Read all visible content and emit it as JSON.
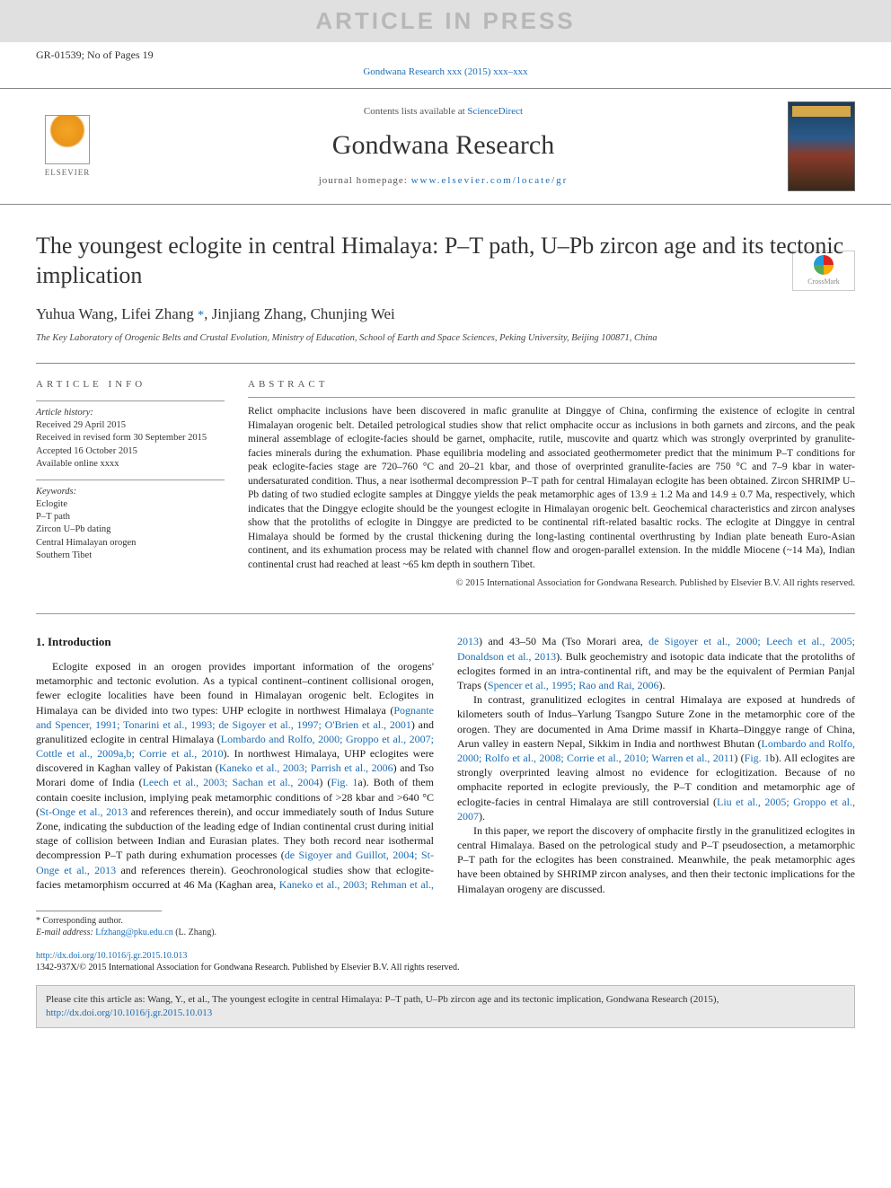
{
  "banner": "ARTICLE IN PRESS",
  "gr_id": "GR-01539; No of Pages 19",
  "journal_ref": "Gondwana Research xxx (2015) xxx–xxx",
  "contents_line_pre": "Contents lists available at ",
  "contents_line_link": "ScienceDirect",
  "journal_title": "Gondwana Research",
  "homepage_pre": "journal homepage: ",
  "homepage_url": "www.elsevier.com/locate/gr",
  "elsevier": "ELSEVIER",
  "crossmark": "CrossMark",
  "title": "The youngest eclogite in central Himalaya: P–T path, U–Pb zircon age and its tectonic implication",
  "authors_line": "Yuhua Wang, Lifei Zhang *, Jinjiang Zhang, Chunjing Wei",
  "affiliation": "The Key Laboratory of Orogenic Belts and Crustal Evolution, Ministry of Education, School of Earth and Space Sciences, Peking University, Beijing 100871, China",
  "info_head": "ARTICLE INFO",
  "abs_head": "ABSTRACT",
  "history_label": "Article history:",
  "history": [
    "Received 29 April 2015",
    "Received in revised form 30 September 2015",
    "Accepted 16 October 2015",
    "Available online xxxx"
  ],
  "keywords_label": "Keywords:",
  "keywords": [
    "Eclogite",
    "P–T path",
    "Zircon U–Pb dating",
    "Central Himalayan orogen",
    "Southern Tibet"
  ],
  "abstract": "Relict omphacite inclusions have been discovered in mafic granulite at Dinggye of China, confirming the existence of eclogite in central Himalayan orogenic belt. Detailed petrological studies show that relict omphacite occur as inclusions in both garnets and zircons, and the peak mineral assemblage of eclogite-facies should be garnet, omphacite, rutile, muscovite and quartz which was strongly overprinted by granulite-facies minerals during the exhumation. Phase equilibria modeling and associated geothermometer predict that the minimum P–T conditions for peak eclogite-facies stage are 720–760 °C and 20–21 kbar, and those of overprinted granulite-facies are 750 °C and 7–9 kbar in water-undersaturated condition. Thus, a near isothermal decompression P–T path for central Himalayan eclogite has been obtained. Zircon SHRIMP U–Pb dating of two studied eclogite samples at Dinggye yields the peak metamorphic ages of 13.9 ± 1.2 Ma and 14.9 ± 0.7 Ma, respectively, which indicates that the Dinggye eclogite should be the youngest eclogite in Himalayan orogenic belt. Geochemical characteristics and zircon analyses show that the protoliths of eclogite in Dinggye are predicted to be continental rift-related basaltic rocks. The eclogite at Dinggye in central Himalaya should be formed by the crustal thickening during the long-lasting continental overthrusting by Indian plate beneath Euro-Asian continent, and its exhumation process may be related with channel flow and orogen-parallel extension. In the middle Miocene (~14 Ma), Indian continental crust had reached at least ~65 km depth in southern Tibet.",
  "copyright": "© 2015 International Association for Gondwana Research. Published by Elsevier B.V. All rights reserved.",
  "section1_head": "1. Introduction",
  "p1a": "Eclogite exposed in an orogen provides important information of the orogens' metamorphic and tectonic evolution. As a typical continent–continent collisional orogen, fewer eclogite localities have been found in Himalayan orogenic belt. Eclogites in Himalaya can be divided into two types: UHP eclogite in northwest Himalaya (",
  "p1_ref1": "Pognante and Spencer, 1991; Tonarini et al., 1993; de Sigoyer et al., 1997; O'Brien et al., 2001",
  "p1b": ") and granulitized eclogite in central Himalaya (",
  "p1_ref2": "Lombardo and Rolfo, 2000; Groppo et al., 2007; Cottle et al., 2009a,b; Corrie et al., 2010",
  "p1c": "). In northwest Himalaya, UHP eclogites were discovered in Kaghan valley of Pakistan (",
  "p1_ref3": "Kaneko et al., 2003; Parrish et al., 2006",
  "p1d": ") and Tso Morari dome of India (",
  "p1_ref4": "Leech et al., 2003; Sachan et al., 2004",
  "p1e": ") (",
  "p1_ref5": "Fig. 1",
  "p1f": "a). Both of them contain coesite inclusion, implying peak metamorphic conditions of >28 kbar and >640 °C (",
  "p1_ref6": "St-Onge et al., 2013",
  "p1g": " and references therein), and occur immediately south of Indus Suture Zone, indicating the subduction of the leading edge of Indian continental crust during initial stage of collision between Indian and Eurasian plates. They both record near isothermal decompression P–T path during exhumation processes (",
  "p1_ref7": "de Sigoyer and Guillot, 2004; St-Onge ",
  "p2_ref1": "et al., 2013",
  "p2a": " and references therein). Geochronological studies show that eclogite-facies metamorphism occurred at 46 Ma (Kaghan area, ",
  "p2_ref2": "Kaneko et al., 2003; Rehman et al., 2013",
  "p2b": ") and 43–50 Ma (Tso Morari area, ",
  "p2_ref3": "de Sigoyer et al., 2000; Leech et al., 2005; Donaldson et al., 2013",
  "p2c": "). Bulk geochemistry and isotopic data indicate that the protoliths of eclogites formed in an intra-continental rift, and may be the equivalent of Permian Panjal Traps (",
  "p2_ref4": "Spencer et al., 1995; Rao and Rai, 2006",
  "p2d": ").",
  "p3a": "In contrast, granulitized eclogites in central Himalaya are exposed at hundreds of kilometers south of Indus–Yarlung Tsangpo Suture Zone in the metamorphic core of the orogen. They are documented in Ama Drime massif in Kharta–Dinggye range of China, Arun valley in eastern Nepal, Sikkim in India and northwest Bhutan (",
  "p3_ref1": "Lombardo and Rolfo, 2000; Rolfo et al., 2008; Corrie et al., 2010; Warren et al., 2011",
  "p3b": ") (",
  "p3_ref2": "Fig. 1",
  "p3c": "b). All eclogites are strongly overprinted leaving almost no evidence for eclogitization. Because of no omphacite reported in eclogite previously, the P–T condition and metamorphic age of eclogite-facies in central Himalaya are still controversial (",
  "p3_ref3": "Liu et al., 2005; Groppo et al., 2007",
  "p3d": ").",
  "p4": "In this paper, we report the discovery of omphacite firstly in the granulitized eclogites in central Himalaya. Based on the petrological study and P–T pseudosection, a metamorphic P–T path for the eclogites has been constrained. Meanwhile, the peak metamorphic ages have been obtained by SHRIMP zircon analyses, and then their tectonic implications for the Himalayan orogeny are discussed.",
  "corr_label": "* Corresponding author.",
  "email_label": "E-mail address: ",
  "email": "Lfzhang@pku.edu.cn",
  "email_who": " (L. Zhang).",
  "doi": "http://dx.doi.org/10.1016/j.gr.2015.10.013",
  "issn_line": "1342-937X/© 2015 International Association for Gondwana Research. Published by Elsevier B.V. All rights reserved.",
  "cite_pre": "Please cite this article as: Wang, Y., et al., The youngest eclogite in central Himalaya: P–T path, U–Pb zircon age and its tectonic implication, Gondwana Research (2015), ",
  "cite_doi": "http://dx.doi.org/10.1016/j.gr.2015.10.013",
  "colors": {
    "link": "#1b6db5",
    "banner_bg": "#e0e0e0",
    "banner_fg": "#b8b8b8",
    "citebox_bg": "#e9e9e9",
    "rule": "#888888"
  }
}
